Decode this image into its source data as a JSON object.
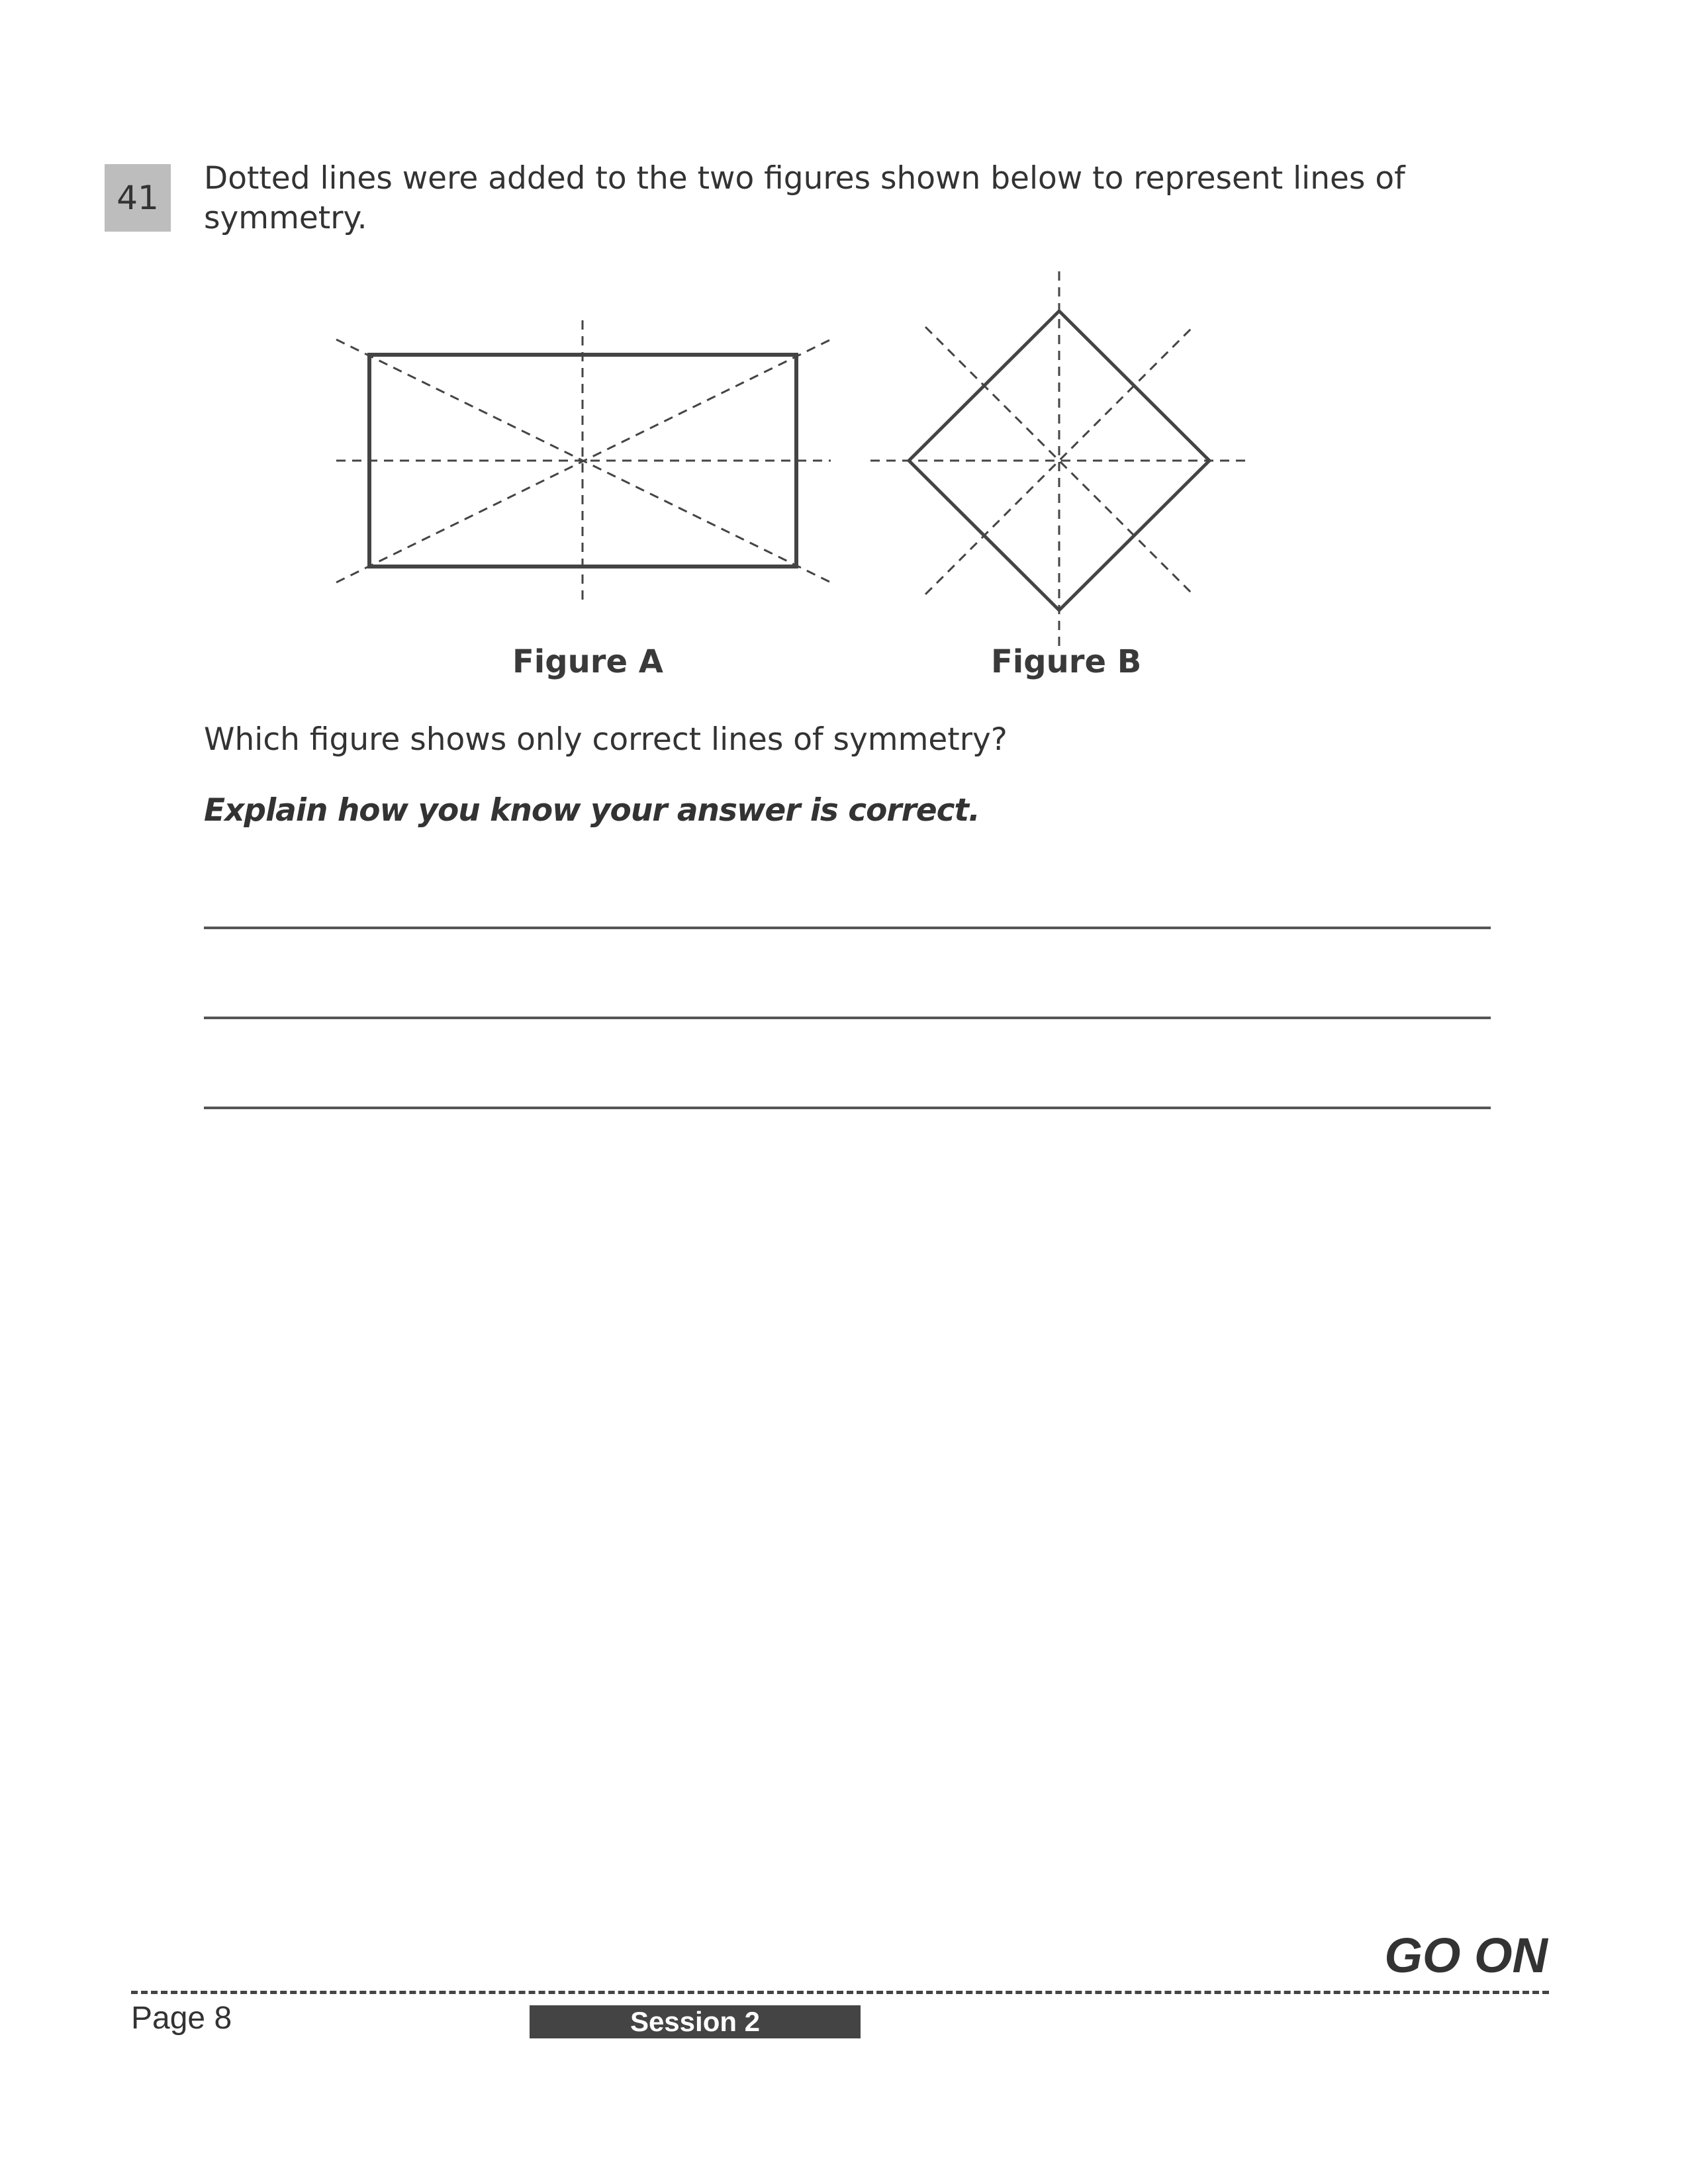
{
  "question": {
    "number": "41",
    "stem": "Dotted lines were added to the two figures shown below to represent lines of symmetry.",
    "prompt": "Which figure shows only correct lines of symmetry?",
    "instruction": "Explain how you know your answer is correct."
  },
  "figures": {
    "figure_a": {
      "label": "Figure A"
    },
    "figure_b": {
      "label": "Figure B"
    }
  },
  "answer_lines_count": 3,
  "footer": {
    "go_on": "GO ON",
    "page": "Page 8",
    "session": "Session 2"
  },
  "colors": {
    "badge": "#bdbdbd",
    "session_bar": "#444444",
    "ink": "#333333"
  }
}
